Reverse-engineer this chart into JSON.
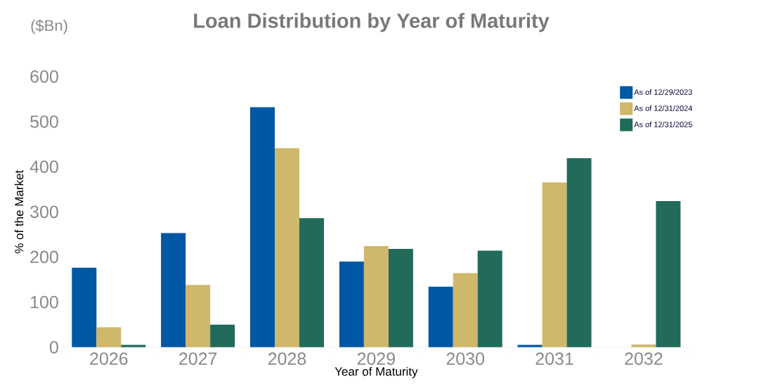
{
  "chart_data": {
    "type": "bar",
    "title": "Loan Distribution by Year of Maturity",
    "xlabel": "Year of Maturity",
    "ylabel": "% of the Market",
    "annotations": [
      "($Bn)"
    ],
    "categories": [
      "2026",
      "2027",
      "2028",
      "2029",
      "2030",
      "2031",
      "2032"
    ],
    "series": [
      {
        "name": "As of 12/29/2023",
        "color": "#0057a3",
        "values": [
          176,
          253,
          532,
          190,
          134,
          5,
          null
        ]
      },
      {
        "name": "As of 12/31/2024",
        "color": "#cfb76b",
        "values": [
          44,
          138,
          441,
          224,
          164,
          365,
          6
        ]
      },
      {
        "name": "As of 12/31/2025",
        "color": "#226b5a",
        "values": [
          5,
          50,
          286,
          218,
          214,
          419,
          324
        ]
      }
    ],
    "ylim": [
      0,
      600
    ],
    "yticks": [
      0,
      100,
      200,
      300,
      400,
      500,
      600
    ],
    "grid": false,
    "legend": "top right"
  }
}
